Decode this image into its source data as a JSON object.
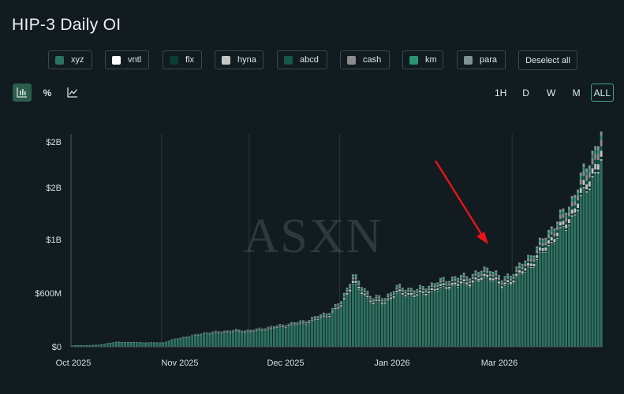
{
  "title": "HIP-3 Daily OI",
  "legend": {
    "items": [
      {
        "label": "xyz",
        "color": "#2e7361"
      },
      {
        "label": "vntl",
        "color": "#ffffff"
      },
      {
        "label": "flx",
        "color": "#0e3d31"
      },
      {
        "label": "hyna",
        "color": "#c3c6c6"
      },
      {
        "label": "abcd",
        "color": "#145a47"
      },
      {
        "label": "cash",
        "color": "#8b8d8d"
      },
      {
        "label": "km",
        "color": "#2a9474"
      },
      {
        "label": "para",
        "color": "#7f9492"
      }
    ],
    "deselect_label": "Deselect all"
  },
  "toolbar": {
    "icons": [
      "bar-chart-icon",
      "percent-icon",
      "line-chart-icon"
    ],
    "percent_glyph": "%"
  },
  "ranges": {
    "options": [
      "1H",
      "D",
      "W",
      "M",
      "ALL"
    ],
    "selected": "ALL"
  },
  "watermark": "ASXN",
  "annotation": {
    "type": "arrow",
    "color": "#e8141a",
    "points_to": "2026-02-24"
  },
  "chart_data": {
    "type": "bar",
    "stacked": true,
    "title": "HIP-3 Daily OI",
    "xlabel": "",
    "ylabel": "",
    "x_ticks": [
      "Oct 2025",
      "Nov 2025",
      "Dec 2025",
      "Jan 2026",
      "Mar 2026"
    ],
    "y_ticks": [
      "$0",
      "$600M",
      "$1B",
      "$2B",
      "$2B"
    ],
    "y_tick_values": [
      0,
      600000000,
      1200000000,
      1800000000,
      2400000000
    ],
    "ylim": [
      0,
      2400000000
    ],
    "x_range": [
      "2025-10-01",
      "2026-03-31"
    ],
    "grid": {
      "x": true,
      "y": false
    },
    "series_names": [
      "xyz",
      "vntl",
      "flx",
      "hyna",
      "abcd",
      "cash",
      "km",
      "para"
    ],
    "total_oi_keypoints_usd_millions": [
      {
        "date": "2025-10-01",
        "value": 15
      },
      {
        "date": "2025-10-10",
        "value": 20
      },
      {
        "date": "2025-10-16",
        "value": 55
      },
      {
        "date": "2025-10-25",
        "value": 50
      },
      {
        "date": "2025-11-01",
        "value": 48
      },
      {
        "date": "2025-11-05",
        "value": 90
      },
      {
        "date": "2025-11-15",
        "value": 160
      },
      {
        "date": "2025-11-25",
        "value": 190
      },
      {
        "date": "2025-12-01",
        "value": 190
      },
      {
        "date": "2025-12-10",
        "value": 240
      },
      {
        "date": "2025-12-20",
        "value": 300
      },
      {
        "date": "2025-12-28",
        "value": 400
      },
      {
        "date": "2026-01-01",
        "value": 520
      },
      {
        "date": "2026-01-05",
        "value": 820
      },
      {
        "date": "2026-01-08",
        "value": 690
      },
      {
        "date": "2026-01-12",
        "value": 560
      },
      {
        "date": "2026-01-16",
        "value": 560
      },
      {
        "date": "2026-01-20",
        "value": 680
      },
      {
        "date": "2026-01-27",
        "value": 650
      },
      {
        "date": "2026-02-05",
        "value": 760
      },
      {
        "date": "2026-02-15",
        "value": 820
      },
      {
        "date": "2026-02-21",
        "value": 900
      },
      {
        "date": "2026-02-25",
        "value": 760
      },
      {
        "date": "2026-03-02",
        "value": 880
      },
      {
        "date": "2026-03-08",
        "value": 1080
      },
      {
        "date": "2026-03-14",
        "value": 1350
      },
      {
        "date": "2026-03-20",
        "value": 1600
      },
      {
        "date": "2026-03-26",
        "value": 2050
      },
      {
        "date": "2026-03-31",
        "value": 2400
      }
    ]
  }
}
